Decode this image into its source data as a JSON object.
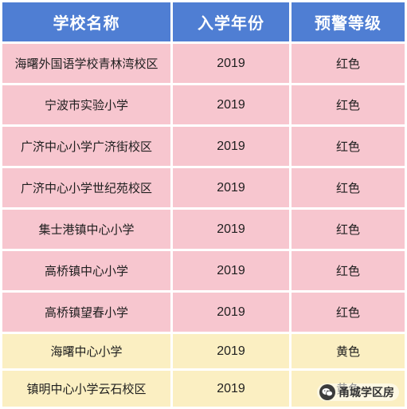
{
  "table": {
    "headers": [
      "学校名称",
      "入学年份",
      "预警等级"
    ],
    "rows": [
      {
        "school": "海曙外国语学校青林湾校区",
        "year": "2019",
        "level": "红色",
        "color": "#f7c6cf"
      },
      {
        "school": "宁波市实验小学",
        "year": "2019",
        "level": "红色",
        "color": "#f7c6cf"
      },
      {
        "school": "广济中心小学广济街校区",
        "year": "2019",
        "level": "红色",
        "color": "#f7c6cf"
      },
      {
        "school": "广济中心小学世纪苑校区",
        "year": "2019",
        "level": "红色",
        "color": "#f7c6cf"
      },
      {
        "school": "集士港镇中心小学",
        "year": "2019",
        "level": "红色",
        "color": "#f7c6cf"
      },
      {
        "school": "高桥镇中心小学",
        "year": "2019",
        "level": "红色",
        "color": "#f7c6cf"
      },
      {
        "school": "高桥镇望春小学",
        "year": "2019",
        "level": "红色",
        "color": "#f7c6cf"
      },
      {
        "school": "海曙中心小学",
        "year": "2019",
        "level": "黄色",
        "color": "#fbefc2"
      },
      {
        "school": "镇明中心小学云石校区",
        "year": "2019",
        "level": "黄色",
        "color": "#fbefc2"
      }
    ]
  },
  "colors": {
    "header_bg": "#4f7ed3",
    "red_row_bg": "#f7c6cf",
    "yellow_row_bg": "#fbefc2"
  },
  "watermark": {
    "text": "甬城学区房",
    "icon": "wechat-icon"
  }
}
